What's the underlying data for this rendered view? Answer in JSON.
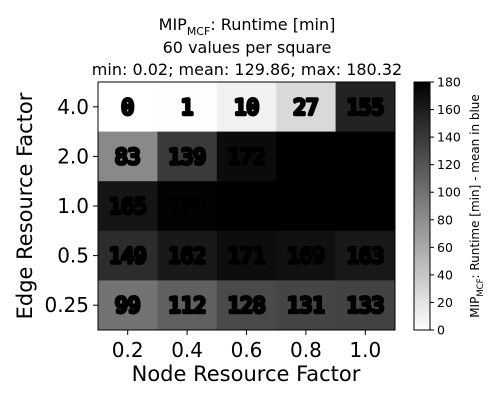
{
  "chart_data": {
    "type": "heatmap",
    "title_lines": [
      "MIP",
      "60 values per square",
      "min: 0.02; mean: 129.86; max: 180.32"
    ],
    "title_main": "MIP",
    "title_subscript": "MCF",
    "title_suffix": ": Runtime [min]",
    "subtitle": "60 values per square",
    "stats_line": "min: 0.02; mean: 129.86; max: 180.32",
    "xlabel": "Node Resource Factor",
    "ylabel": "Edge Resource Factor",
    "x_ticks": [
      "0.2",
      "0.4",
      "0.6",
      "0.8",
      "1.0"
    ],
    "y_ticks": [
      "4.0",
      "2.0",
      "1.0",
      "0.5",
      "0.25"
    ],
    "values": [
      [
        0,
        1,
        10,
        27,
        155
      ],
      [
        83,
        139,
        172,
        180,
        180
      ],
      [
        165,
        178,
        180,
        180,
        180
      ],
      [
        149,
        162,
        171,
        169,
        163
      ],
      [
        99,
        112,
        128,
        131,
        133
      ]
    ],
    "colorbar": {
      "label_main": "MIP",
      "label_subscript": "MCF",
      "label_suffix": ": Runtime [min] - mean in blue",
      "ticks": [
        "0",
        "20",
        "40",
        "60",
        "80",
        "100",
        "120",
        "140",
        "160",
        "180"
      ],
      "vmin": 0,
      "vmax": 180,
      "colormap": "Greys"
    }
  }
}
